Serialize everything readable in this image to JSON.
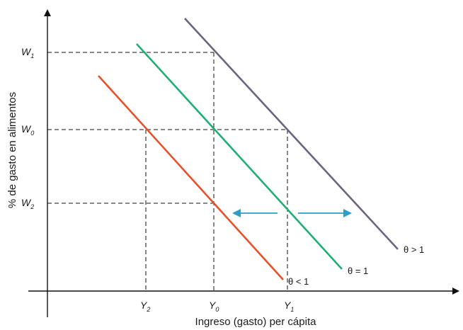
{
  "axes": {
    "x_title": "Ingreso (gasto) per cápita",
    "y_title": "% de gasto en alimentos"
  },
  "y_ticks": [
    {
      "main": "W",
      "sub": "1"
    },
    {
      "main": "W",
      "sub": "0"
    },
    {
      "main": "W",
      "sub": "2"
    }
  ],
  "x_ticks": [
    {
      "main": "Y",
      "sub": "2"
    },
    {
      "main": "Y",
      "sub": "0"
    },
    {
      "main": "Y",
      "sub": "1"
    }
  ],
  "curves": [
    {
      "label": "θ < 1",
      "color": "#e8502a"
    },
    {
      "label": "θ = 1",
      "color": "#1fae74"
    },
    {
      "label": "θ > 1",
      "color": "#6b6480"
    }
  ],
  "colors": {
    "axis": "#111111",
    "guides": "#111111",
    "arrows": "#2a9fc9"
  }
}
